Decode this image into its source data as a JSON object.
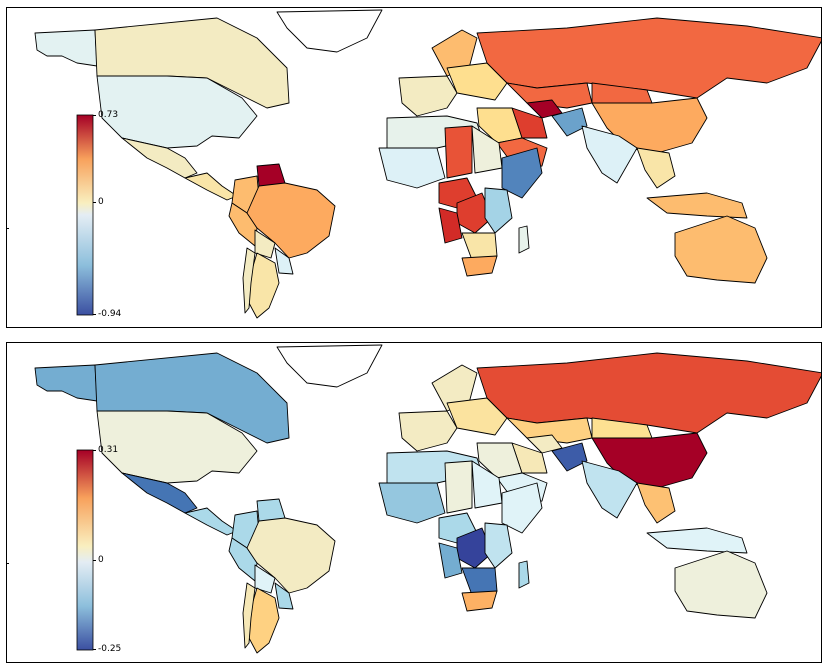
{
  "figure": {
    "description": "Two stacked world choropleth maps with diverging colorbars",
    "panels": [
      {
        "id": "top",
        "colorbar": {
          "max_label": "0.73",
          "mid_label": "0",
          "min_label": "-0.94"
        },
        "region_values": {
          "canada": 0.05,
          "usa": -0.15,
          "greenland": 0.0,
          "alaska": -0.15,
          "mexico": 0.05,
          "central_america": 0.1,
          "venezuela": 0.73,
          "colombia": 0.25,
          "brazil": 0.3,
          "peru": 0.25,
          "bolivia": 0.05,
          "argentina": 0.1,
          "chile": 0.05,
          "paraguay_uruguay": -0.2,
          "russia": 0.45,
          "scandinavia": 0.25,
          "western_europe": 0.05,
          "eastern_europe": 0.15,
          "kazakhstan": 0.45,
          "china": 0.3,
          "mongolia": 0.45,
          "iran": 0.55,
          "turkmenistan": 0.73,
          "afghanistan": -0.6,
          "india": -0.2,
          "saudi": 0.45,
          "middle_east": 0.15,
          "se_asia": 0.1,
          "indonesia": 0.25,
          "australia": 0.25,
          "north_africa": -0.1,
          "west_africa": -0.2,
          "sahel": 0.5,
          "sudan": 0.0,
          "ethiopia_somalia": -0.7,
          "central_africa": 0.55,
          "angola": 0.6,
          "drc": 0.55,
          "east_africa": -0.4,
          "southern_africa": 0.1,
          "madagascar": -0.1,
          "south_africa": 0.3
        }
      },
      {
        "id": "bottom",
        "colorbar": {
          "max_label": "0.31",
          "mid_label": "0",
          "min_label": "-0.25"
        },
        "region_values": {
          "canada": -0.15,
          "usa": 0.0,
          "greenland": 0.0,
          "alaska": -0.15,
          "mexico": -0.2,
          "central_america": -0.1,
          "venezuela": -0.1,
          "colombia": -0.1,
          "brazil": 0.02,
          "peru": -0.1,
          "bolivia": -0.05,
          "argentina": 0.08,
          "chile": 0.03,
          "paraguay_uruguay": -0.1,
          "russia": 0.22,
          "scandinavia": 0.02,
          "western_europe": 0.02,
          "eastern_europe": 0.05,
          "kazakhstan": 0.08,
          "china": 0.31,
          "mongolia": 0.06,
          "iran": 0.03,
          "turkmenistan": 0.02,
          "afghanistan": -0.22,
          "india": -0.08,
          "saudi": -0.05,
          "middle_east": 0.0,
          "se_asia": 0.1,
          "indonesia": -0.05,
          "australia": 0.0,
          "north_africa": -0.08,
          "west_africa": -0.12,
          "sahel": 0.0,
          "sudan": -0.05,
          "ethiopia_somalia": -0.05,
          "central_africa": -0.1,
          "angola": -0.15,
          "drc": -0.24,
          "east_africa": -0.08,
          "southern_africa": -0.2,
          "madagascar": -0.1,
          "south_africa": 0.12
        }
      }
    ]
  }
}
